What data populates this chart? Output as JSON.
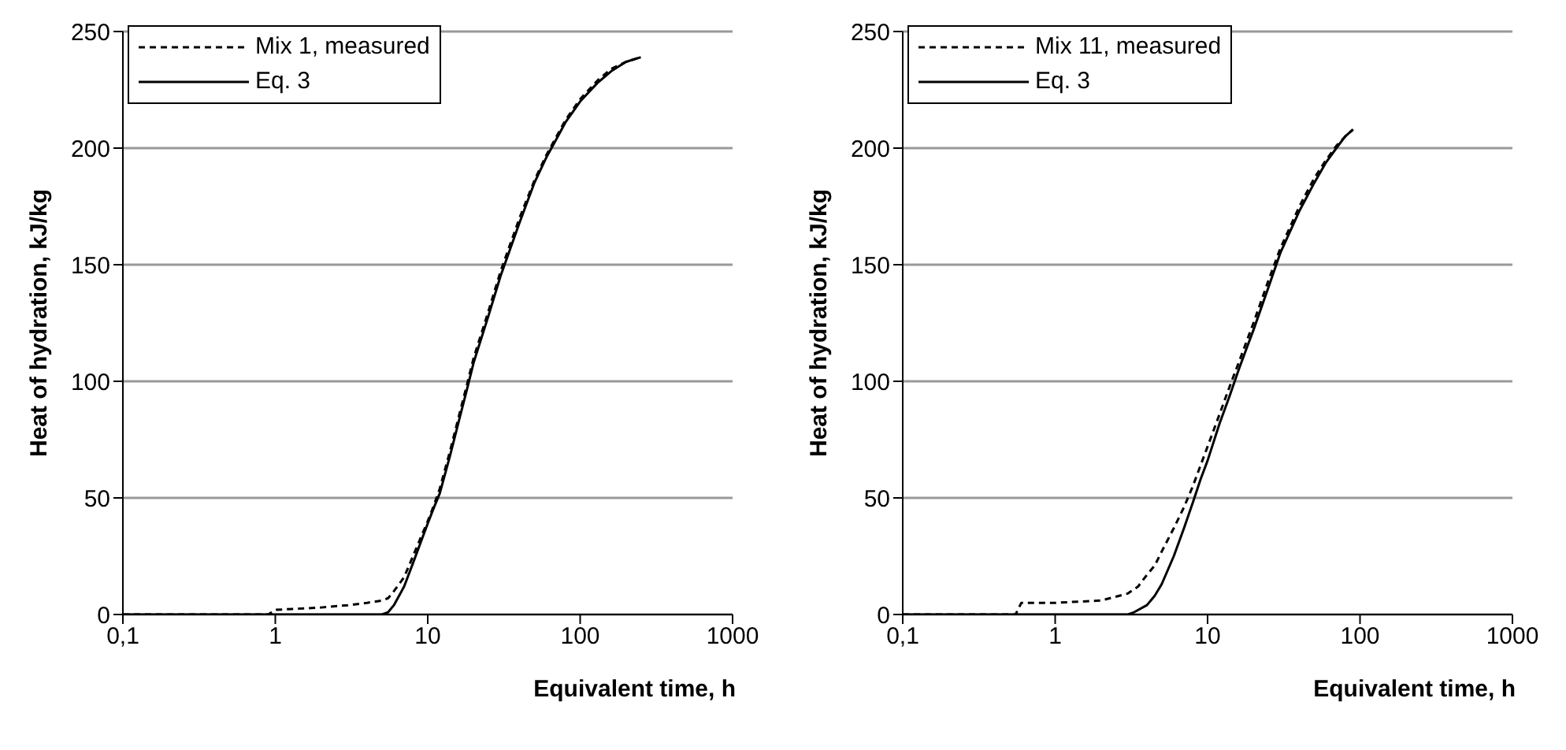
{
  "chart_data": [
    {
      "type": "line",
      "xlabel": "Equivalent time, h",
      "ylabel": "Heat of hydration, kJ/kg",
      "log": "x",
      "grid": "y",
      "legend": "top left",
      "marker": "none",
      "xlim": [
        0.1,
        1000
      ],
      "xticks": [
        {
          "value": 0.1,
          "label": "0,1"
        },
        1,
        10,
        100,
        1000
      ],
      "ylim": [
        0,
        250
      ],
      "yticks": [
        0,
        50,
        100,
        150,
        200,
        250
      ],
      "series": [
        {
          "name": "Mix 1, measured",
          "color": "#000000",
          "line_style": "dashed",
          "x": [
            0.1,
            0.5,
            0.9,
            1,
            2,
            3,
            4,
            5,
            5.5,
            6,
            7,
            8,
            9,
            10,
            11,
            12,
            14,
            16,
            18,
            20,
            25,
            30,
            40,
            50,
            60,
            70,
            80,
            100,
            130,
            160,
            200,
            250
          ],
          "values": [
            0,
            0,
            0,
            2,
            3,
            4,
            5,
            6,
            7,
            10,
            16,
            25,
            33,
            40,
            47,
            54,
            70,
            85,
            98,
            110,
            130,
            147,
            170,
            186,
            197,
            205,
            212,
            221,
            229,
            234,
            237,
            239
          ]
        },
        {
          "name": "Eq. 3",
          "color": "#000000",
          "line_style": "solid",
          "x": [
            0.1,
            1,
            3,
            5,
            5.5,
            6,
            7,
            8,
            9,
            10,
            11,
            12,
            14,
            16,
            18,
            20,
            25,
            30,
            40,
            50,
            60,
            70,
            80,
            100,
            130,
            160,
            200,
            250
          ],
          "values": [
            0,
            0,
            0,
            0,
            1,
            4,
            12,
            22,
            31,
            39,
            46,
            52,
            68,
            83,
            96,
            108,
            128,
            145,
            168,
            185,
            196,
            204,
            211,
            220,
            228,
            233,
            237,
            239
          ]
        }
      ]
    },
    {
      "type": "line",
      "xlabel": "Equivalent time, h",
      "ylabel": "Heat of hydration, kJ/kg",
      "log": "x",
      "grid": "y",
      "legend": "top left",
      "marker": "none",
      "xlim": [
        0.1,
        1000
      ],
      "xticks": [
        {
          "value": 0.1,
          "label": "0,1"
        },
        1,
        10,
        100,
        1000
      ],
      "ylim": [
        0,
        250
      ],
      "yticks": [
        0,
        50,
        100,
        150,
        200,
        250
      ],
      "series": [
        {
          "name": "Mix 11, measured",
          "color": "#000000",
          "line_style": "dashed",
          "x": [
            0.1,
            0.4,
            0.55,
            0.6,
            1,
            2,
            3,
            3.5,
            4,
            4.5,
            5,
            6,
            7,
            8,
            9,
            10,
            12,
            14,
            16,
            18,
            20,
            25,
            30,
            40,
            50,
            60,
            70,
            80,
            90
          ],
          "values": [
            0,
            0,
            0,
            5,
            5,
            6,
            9,
            12,
            17,
            21,
            27,
            37,
            46,
            55,
            64,
            72,
            86,
            98,
            108,
            117,
            125,
            143,
            157,
            175,
            187,
            195,
            201,
            205,
            208
          ]
        },
        {
          "name": "Eq. 3",
          "color": "#000000",
          "line_style": "solid",
          "x": [
            0.1,
            1,
            2,
            3,
            3.3,
            4,
            4.5,
            5,
            6,
            7,
            8,
            9,
            10,
            12,
            14,
            16,
            18,
            20,
            25,
            30,
            40,
            50,
            60,
            70,
            80,
            90
          ],
          "values": [
            0,
            0,
            0,
            0,
            1,
            4,
            8,
            13,
            25,
            37,
            48,
            58,
            66,
            82,
            94,
            105,
            114,
            122,
            140,
            155,
            173,
            185,
            194,
            200,
            205,
            208
          ]
        }
      ]
    }
  ]
}
